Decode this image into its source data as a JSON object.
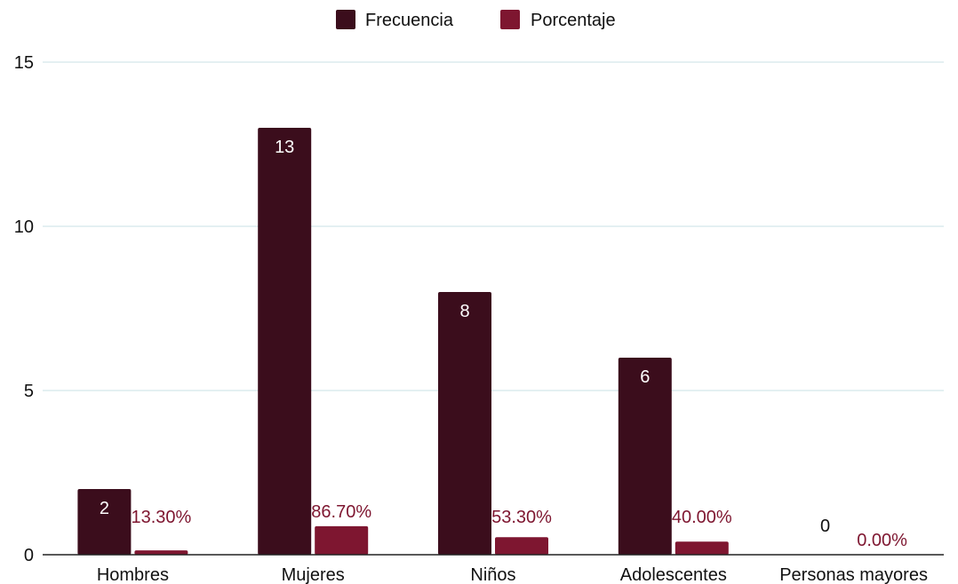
{
  "chart_data": {
    "type": "bar",
    "categories": [
      "Hombres",
      "Mujeres",
      "Niños",
      "Adolescentes",
      "Personas mayores"
    ],
    "series": [
      {
        "name": "Frecuencia",
        "values": [
          2,
          13,
          8,
          6,
          0
        ],
        "labels": [
          "2",
          "13",
          "8",
          "6",
          "0"
        ]
      },
      {
        "name": "Porcentaje",
        "values": [
          0.133,
          0.867,
          0.533,
          0.4,
          0
        ],
        "labels": [
          "13.30%",
          "86.70%",
          "53.30%",
          "40.00%",
          "0.00%"
        ]
      }
    ],
    "yticks": [
      "0",
      "5",
      "10",
      "15"
    ],
    "ylim": [
      0,
      15
    ],
    "grid": true,
    "legend_position": "top-center",
    "colors": {
      "frecuencia": "#3b0d1c",
      "porcentaje": "#7e1630",
      "porcentaje_label": "#7e1630",
      "grid": "#d3e6ea",
      "axis": "#222222"
    }
  }
}
